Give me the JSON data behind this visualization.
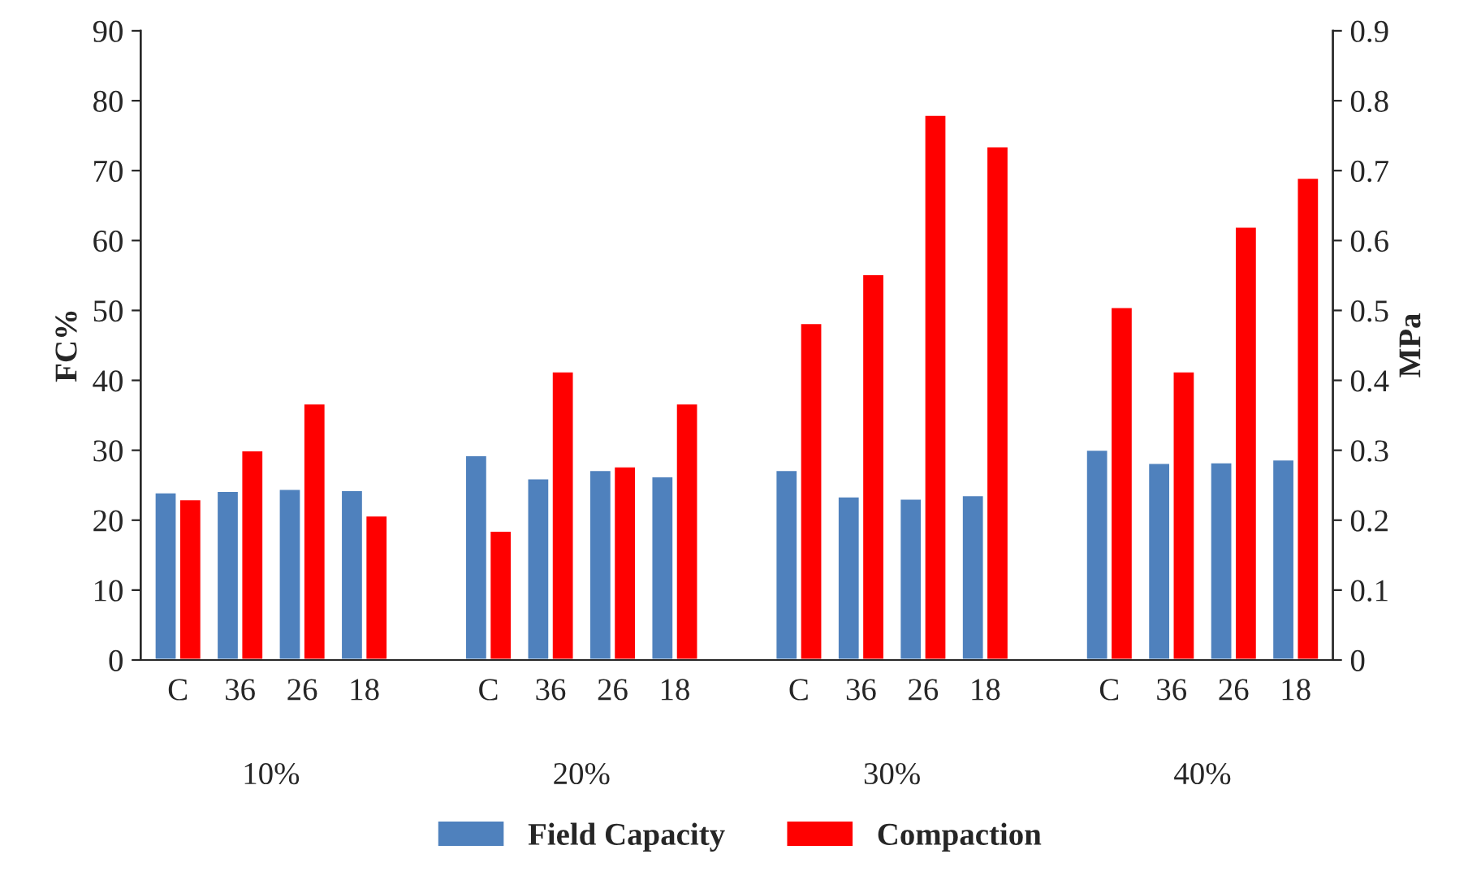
{
  "chart_data": {
    "type": "bar",
    "categories": [
      "C",
      "36",
      "26",
      "18",
      null,
      "C",
      "36",
      "26",
      "18",
      null,
      "C",
      "36",
      "26",
      "18",
      null,
      "C",
      "36",
      "26",
      "18"
    ],
    "series": [
      {
        "name": "Field Capacity",
        "color": "#4f81bd",
        "values": [
          24,
          24.2,
          24.5,
          24.3,
          null,
          29.3,
          26,
          27.2,
          26.3,
          null,
          27.2,
          23.4,
          23.1,
          23.6,
          null,
          30.1,
          28.2,
          28.3,
          28.7
        ]
      },
      {
        "name": "Compaction",
        "color": "#ff0000",
        "axis": "y2",
        "values": [
          0.23,
          0.3,
          0.367,
          0.207,
          null,
          0.185,
          0.413,
          0.277,
          0.367,
          null,
          0.482,
          0.552,
          0.78,
          0.735,
          null,
          0.505,
          0.413,
          0.62,
          0.69
        ]
      }
    ],
    "annotations": [
      "10%",
      "20%",
      "30%",
      "40%"
    ],
    "ylabel": "FC%",
    "y2label": "MPa",
    "ylim": [
      0,
      90
    ],
    "yticks": [
      0,
      10,
      20,
      30,
      40,
      50,
      60,
      70,
      80,
      90
    ],
    "y2lim": [
      0,
      0.9
    ],
    "y2ticks": [
      0,
      0.1,
      0.2,
      0.3,
      0.4,
      0.5,
      0.6,
      0.7,
      0.8,
      0.9
    ],
    "grid": false,
    "legend": "bottom"
  }
}
